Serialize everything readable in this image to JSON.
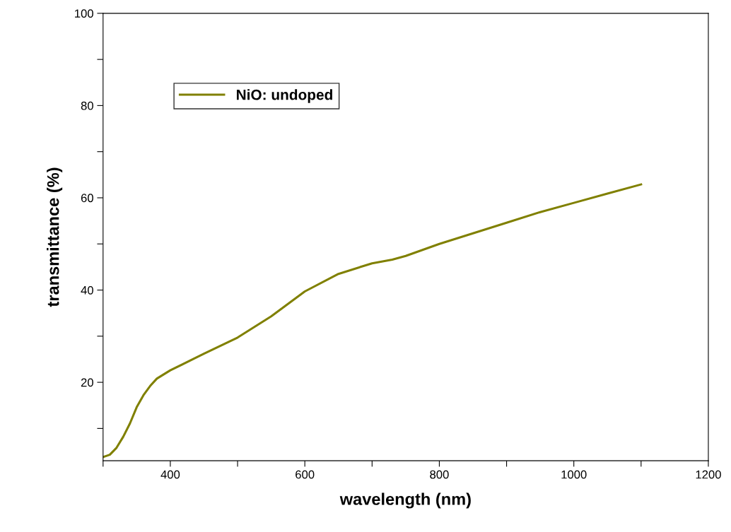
{
  "chart_data": {
    "type": "line",
    "xlabel": "wavelength (nm)",
    "ylabel": "transmittance (%)",
    "x": [
      300,
      310,
      320,
      330,
      340,
      350,
      360,
      370,
      380,
      400,
      450,
      500,
      550,
      600,
      650,
      700,
      730,
      750,
      800,
      850,
      900,
      950,
      1000,
      1050,
      1100
    ],
    "series": [
      {
        "name": "NiO: undoped",
        "color": "#808000",
        "values": [
          3.8,
          4.3,
          5.8,
          8.2,
          11.1,
          14.6,
          17.2,
          19.2,
          20.8,
          22.6,
          26.2,
          29.7,
          34.3,
          39.7,
          43.5,
          45.8,
          46.6,
          47.4,
          50.0,
          52.3,
          54.6,
          56.9,
          58.9,
          60.9,
          62.9
        ]
      }
    ],
    "xlim": [
      300,
      1200
    ],
    "ylim": [
      3,
      100
    ],
    "xticks": [
      {
        "value": 300,
        "label": null
      },
      400,
      {
        "value": 500,
        "label": null
      },
      600,
      {
        "value": 700,
        "label": null
      },
      800,
      {
        "value": 900,
        "label": null
      },
      1000,
      {
        "value": 1100,
        "label": null
      },
      1200
    ],
    "yticks": [
      {
        "value": 10,
        "label": null
      },
      20,
      {
        "value": 30,
        "label": null
      },
      40,
      {
        "value": 50,
        "label": null
      },
      60,
      {
        "value": 70,
        "label": null
      },
      80,
      {
        "value": 90,
        "label": null
      },
      100
    ],
    "grid": false,
    "legend": "top left",
    "marker": "none",
    "line_style": "solid"
  }
}
